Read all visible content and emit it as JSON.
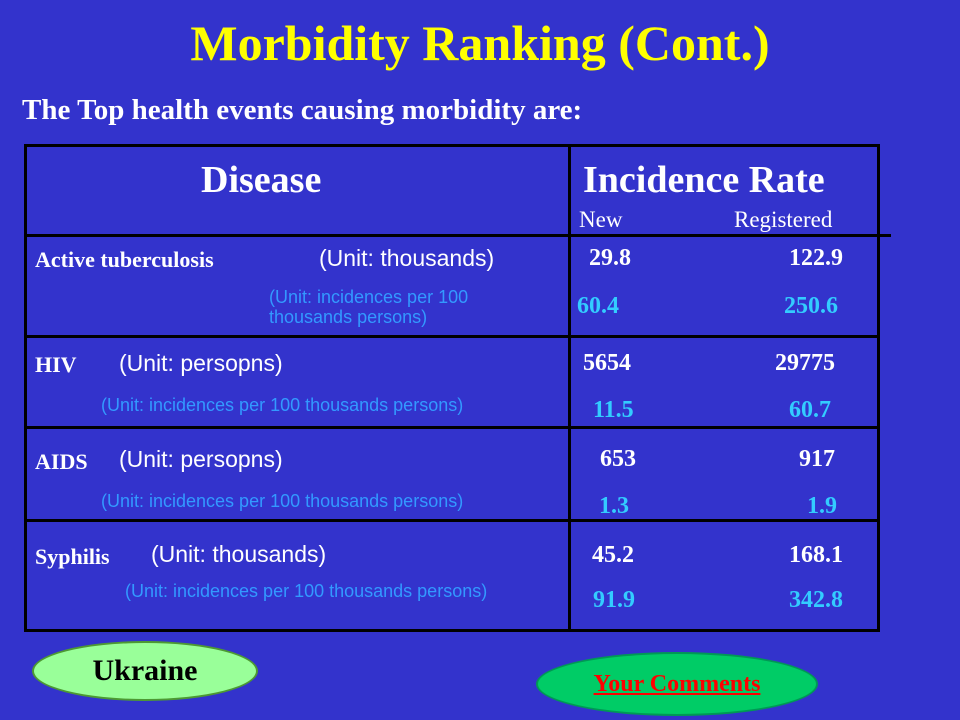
{
  "title": "Morbidity Ranking (Cont.)",
  "subtitle": "The Top health events causing morbidity  are:",
  "table": {
    "header_disease": "Disease",
    "header_incidence": "Incidence Rate",
    "col_new": "New",
    "col_registered": "Registered",
    "rows": [
      {
        "disease": "Active tuberculosis",
        "unit": "(Unit: thousands)",
        "rate_unit": "(Unit: incidences  per 100 thousands persons)",
        "new": "29.8",
        "registered": "122.9",
        "rate_new": "60.4",
        "rate_registered": "250.6"
      },
      {
        "disease": "HIV",
        "unit": "(Unit: persopns)",
        "rate_unit": "(Unit: incidences  per 100  thousands persons)",
        "new": "5654",
        "registered": "29775",
        "rate_new": "11.5",
        "rate_registered": "60.7"
      },
      {
        "disease": "AIDS",
        "unit": "(Unit: persopns)",
        "rate_unit": "(Unit: incidences  per 100  thousands persons)",
        "new": "653",
        "registered": "917",
        "rate_new": "1.3",
        "rate_registered": "1.9"
      },
      {
        "disease": "Syphilis",
        "unit": "(Unit: thousands)",
        "rate_unit": "(Unit: incidences per 100 thousands persons)",
        "new": "45.2",
        "registered": "168.1",
        "rate_new": "91.9",
        "rate_registered": "342.8"
      }
    ]
  },
  "footer": {
    "country": "Ukraine",
    "comments_link": "Your Comments"
  },
  "colors": {
    "background": "#3333cc",
    "title": "#ffff00",
    "rate_text": "#33ccff",
    "link": "#ff0000"
  }
}
